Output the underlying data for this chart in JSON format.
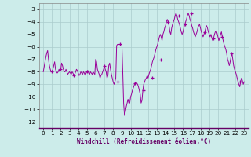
{
  "title": "",
  "xlabel": "Windchill (Refroidissement éolien,°C)",
  "bg_color": "#ccecea",
  "grid_color": "#aacccc",
  "line_color": "#990099",
  "marker_color": "#990099",
  "xlim": [
    -0.5,
    23.5
  ],
  "ylim": [
    -12.5,
    -2.5
  ],
  "yticks": [
    -12,
    -11,
    -10,
    -9,
    -8,
    -7,
    -6,
    -5,
    -4,
    -3
  ],
  "xticks": [
    0,
    1,
    2,
    3,
    4,
    5,
    6,
    7,
    8,
    9,
    10,
    11,
    12,
    13,
    14,
    15,
    16,
    17,
    18,
    19,
    20,
    21,
    22,
    23
  ],
  "x": [
    0.0,
    0.1,
    0.2,
    0.3,
    0.4,
    0.5,
    0.6,
    0.7,
    0.8,
    0.9,
    1.0,
    1.1,
    1.2,
    1.3,
    1.4,
    1.5,
    1.6,
    1.7,
    1.8,
    1.9,
    2.0,
    2.1,
    2.2,
    2.3,
    2.4,
    2.5,
    2.6,
    2.7,
    2.8,
    2.9,
    3.0,
    3.1,
    3.2,
    3.3,
    3.4,
    3.5,
    3.6,
    3.7,
    3.8,
    3.9,
    4.0,
    4.1,
    4.2,
    4.3,
    4.4,
    4.5,
    4.6,
    4.7,
    4.8,
    4.9,
    5.0,
    5.1,
    5.2,
    5.3,
    5.4,
    5.5,
    5.6,
    5.7,
    5.8,
    5.9,
    6.0,
    6.1,
    6.2,
    6.3,
    6.4,
    6.5,
    6.6,
    6.7,
    6.8,
    6.9,
    7.0,
    7.1,
    7.2,
    7.3,
    7.4,
    7.5,
    7.6,
    7.7,
    7.8,
    7.9,
    8.0,
    8.1,
    8.2,
    8.3,
    8.4,
    8.5,
    8.6,
    8.7,
    8.8,
    8.9,
    9.0,
    9.1,
    9.2,
    9.3,
    9.4,
    9.5,
    9.6,
    9.7,
    9.8,
    9.9,
    10.0,
    10.1,
    10.2,
    10.3,
    10.4,
    10.5,
    10.6,
    10.7,
    10.8,
    10.9,
    11.0,
    11.1,
    11.2,
    11.3,
    11.4,
    11.5,
    11.6,
    11.7,
    11.8,
    11.9,
    12.0,
    12.1,
    12.2,
    12.3,
    12.4,
    12.5,
    12.6,
    12.7,
    12.8,
    12.9,
    13.0,
    13.1,
    13.2,
    13.3,
    13.4,
    13.5,
    13.6,
    13.7,
    13.8,
    13.9,
    14.0,
    14.1,
    14.2,
    14.3,
    14.4,
    14.5,
    14.6,
    14.7,
    14.8,
    14.9,
    15.0,
    15.1,
    15.2,
    15.3,
    15.4,
    15.5,
    15.6,
    15.7,
    15.8,
    15.9,
    16.0,
    16.1,
    16.2,
    16.3,
    16.4,
    16.5,
    16.6,
    16.7,
    16.8,
    16.9,
    17.0,
    17.1,
    17.2,
    17.3,
    17.4,
    17.5,
    17.6,
    17.7,
    17.8,
    17.9,
    18.0,
    18.1,
    18.2,
    18.3,
    18.4,
    18.5,
    18.6,
    18.7,
    18.8,
    18.9,
    19.0,
    19.1,
    19.2,
    19.3,
    19.4,
    19.5,
    19.6,
    19.7,
    19.8,
    19.9,
    20.0,
    20.1,
    20.2,
    20.3,
    20.4,
    20.5,
    20.6,
    20.7,
    20.8,
    20.9,
    21.0,
    21.1,
    21.2,
    21.3,
    21.4,
    21.5,
    21.6,
    21.7,
    21.8,
    21.9,
    22.0,
    22.1,
    22.2,
    22.3,
    22.4,
    22.5,
    22.6,
    22.7,
    22.8,
    22.9,
    23.0
  ],
  "y": [
    -8.0,
    -7.6,
    -7.2,
    -6.8,
    -6.5,
    -6.3,
    -7.0,
    -7.5,
    -7.8,
    -8.0,
    -8.0,
    -7.8,
    -7.5,
    -7.2,
    -7.8,
    -8.0,
    -8.1,
    -8.0,
    -7.8,
    -8.0,
    -7.8,
    -7.3,
    -7.5,
    -7.8,
    -8.0,
    -8.0,
    -7.8,
    -8.0,
    -8.2,
    -8.1,
    -8.0,
    -8.1,
    -8.2,
    -8.0,
    -8.1,
    -8.3,
    -8.2,
    -8.0,
    -7.8,
    -7.9,
    -8.1,
    -8.3,
    -8.2,
    -8.0,
    -8.1,
    -8.2,
    -8.0,
    -8.1,
    -8.3,
    -8.1,
    -8.0,
    -7.9,
    -8.1,
    -8.2,
    -8.0,
    -8.1,
    -8.2,
    -8.0,
    -8.1,
    -8.2,
    -7.0,
    -7.2,
    -7.8,
    -8.0,
    -8.2,
    -8.5,
    -8.3,
    -8.2,
    -8.0,
    -7.8,
    -7.6,
    -7.8,
    -8.0,
    -8.5,
    -8.3,
    -7.5,
    -7.3,
    -7.8,
    -8.2,
    -8.5,
    -8.8,
    -9.0,
    -8.8,
    -8.5,
    -5.9,
    -5.8,
    -5.8,
    -5.8,
    -5.8,
    -5.8,
    -5.8,
    -8.0,
    -10.5,
    -11.5,
    -11.2,
    -10.8,
    -10.5,
    -10.2,
    -10.5,
    -10.5,
    -10.0,
    -9.8,
    -9.5,
    -9.3,
    -9.1,
    -8.9,
    -8.8,
    -8.9,
    -9.0,
    -9.2,
    -9.5,
    -9.8,
    -10.5,
    -10.3,
    -9.5,
    -9.0,
    -8.8,
    -8.6,
    -8.5,
    -8.3,
    -8.5,
    -8.2,
    -8.0,
    -7.8,
    -7.5,
    -7.2,
    -7.0,
    -6.8,
    -6.5,
    -6.2,
    -6.0,
    -5.8,
    -5.5,
    -5.2,
    -5.0,
    -5.2,
    -5.5,
    -5.0,
    -4.8,
    -4.5,
    -4.3,
    -4.0,
    -3.8,
    -4.0,
    -4.3,
    -4.8,
    -5.0,
    -4.5,
    -4.2,
    -4.0,
    -3.8,
    -3.5,
    -3.3,
    -3.5,
    -3.8,
    -4.0,
    -4.2,
    -4.5,
    -4.8,
    -5.0,
    -4.8,
    -4.5,
    -4.2,
    -4.0,
    -3.8,
    -3.5,
    -3.3,
    -3.5,
    -3.8,
    -4.0,
    -4.3,
    -4.5,
    -4.8,
    -5.0,
    -5.2,
    -5.0,
    -4.8,
    -4.5,
    -4.3,
    -4.2,
    -4.5,
    -4.8,
    -5.0,
    -5.2,
    -5.0,
    -4.8,
    -4.5,
    -4.3,
    -4.5,
    -4.8,
    -5.0,
    -5.2,
    -5.0,
    -5.3,
    -5.5,
    -5.3,
    -5.0,
    -4.8,
    -4.7,
    -4.9,
    -5.2,
    -5.5,
    -5.3,
    -5.0,
    -4.8,
    -5.2,
    -5.5,
    -5.8,
    -6.0,
    -6.2,
    -6.5,
    -7.0,
    -7.2,
    -7.5,
    -7.2,
    -6.8,
    -6.5,
    -7.0,
    -7.5,
    -7.8,
    -8.0,
    -8.2,
    -8.5,
    -8.8,
    -9.0,
    -9.2,
    -8.8,
    -8.5,
    -8.7,
    -9.0,
    -8.8
  ],
  "marker_x": [
    1.0,
    2.0,
    3.5,
    5.0,
    7.0,
    8.5,
    8.8,
    10.5,
    11.5,
    12.5,
    13.5,
    14.3,
    15.5,
    16.2,
    17.0,
    18.5,
    19.5,
    20.5,
    21.5,
    22.5
  ],
  "marker_y": [
    -8.0,
    -7.8,
    -8.3,
    -8.0,
    -7.5,
    -8.8,
    -5.8,
    -8.9,
    -9.5,
    -8.5,
    -7.0,
    -4.0,
    -3.5,
    -4.2,
    -3.3,
    -4.8,
    -5.3,
    -5.2,
    -6.5,
    -8.8
  ]
}
